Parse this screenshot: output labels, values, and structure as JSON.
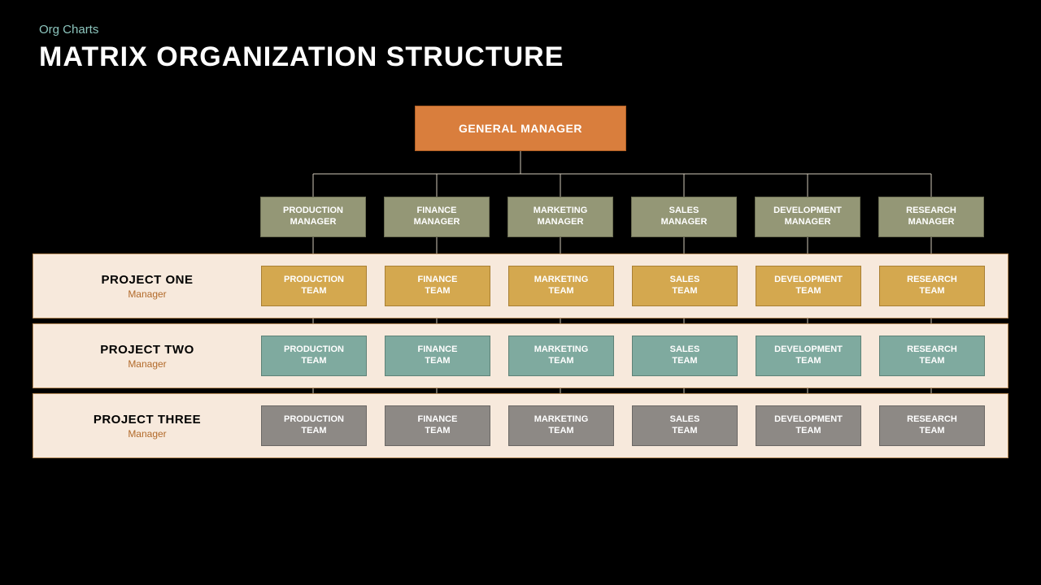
{
  "header": {
    "kicker": "Org Charts",
    "title": "MATRIX ORGANIZATION STRUCTURE"
  },
  "diagram": {
    "type": "org-chart-matrix",
    "background_color": "#000000",
    "connector_color": "#d0c8b8",
    "connector_width": 1,
    "top_node": {
      "label": "GENERAL MANAGER",
      "fill": "#d97e3d",
      "text_color": "#ffffff",
      "border_color": "#b05f24"
    },
    "department_managers": {
      "fill": "#949776",
      "text_color": "#ffffff",
      "border_color": "#6d6f54",
      "items": [
        "PRODUCTION\nMANAGER",
        "FINANCE\nMANAGER",
        "MARKETING\nMANAGER",
        "SALES\nMANAGER",
        "DEVELOPMENT\nMANAGER",
        "RESEARCH\nMANAGER"
      ]
    },
    "project_row_bg": "#f7e9dc",
    "project_row_border": "#b88c5a",
    "subrole_color": "#b26a2a",
    "projects": [
      {
        "name": "PROJECT ONE",
        "role": "Manager",
        "team_fill": "#d4a84f",
        "team_text": "#ffffff",
        "team_border": "#a97f33"
      },
      {
        "name": "PROJECT TWO",
        "role": "Manager",
        "team_fill": "#7faa9f",
        "team_text": "#ffffff",
        "team_border": "#5e8277"
      },
      {
        "name": "PROJECT THREE",
        "role": "Manager",
        "team_fill": "#8d8985",
        "team_text": "#ffffff",
        "team_border": "#6b6865"
      }
    ],
    "team_labels": [
      "PRODUCTION\nTEAM",
      "FINANCE\nTEAM",
      "MARKETING\nTEAM",
      "SALES\nTEAM",
      "DEVELOPMENT\nTEAM",
      "RESEARCH\nTEAM"
    ]
  }
}
